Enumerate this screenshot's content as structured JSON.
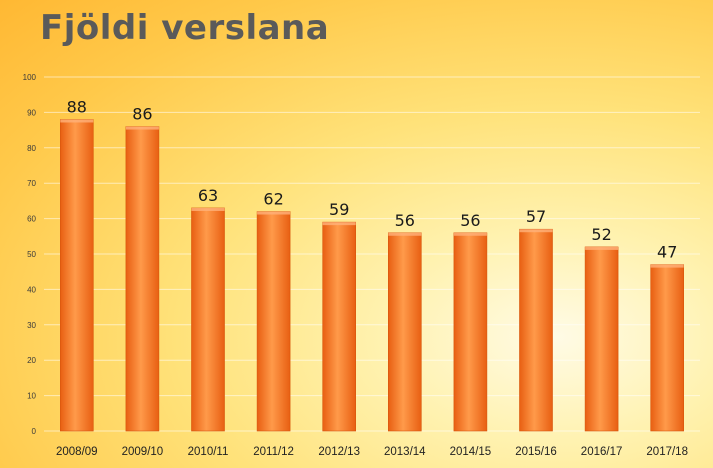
{
  "chart_data": {
    "type": "bar",
    "title": "Fjöldi verslana",
    "categories": [
      "2008/09",
      "2009/10",
      "2010/11",
      "2011/12",
      "2012/13",
      "2013/14",
      "2014/15",
      "2015/16",
      "2016/17",
      "2017/18"
    ],
    "values": [
      88,
      86,
      63,
      62,
      59,
      56,
      56,
      57,
      52,
      47
    ],
    "xlabel": "",
    "ylabel": "",
    "ylim": [
      0,
      100
    ],
    "yticks": [
      0,
      10,
      20,
      30,
      40,
      50,
      60,
      70,
      80,
      90,
      100
    ],
    "grid": true,
    "legend": "none",
    "data_labels": true,
    "colors": {
      "bar_light": "#ff9a4a",
      "bar_dark": "#e85f12",
      "title": "#5a5a5a"
    }
  }
}
